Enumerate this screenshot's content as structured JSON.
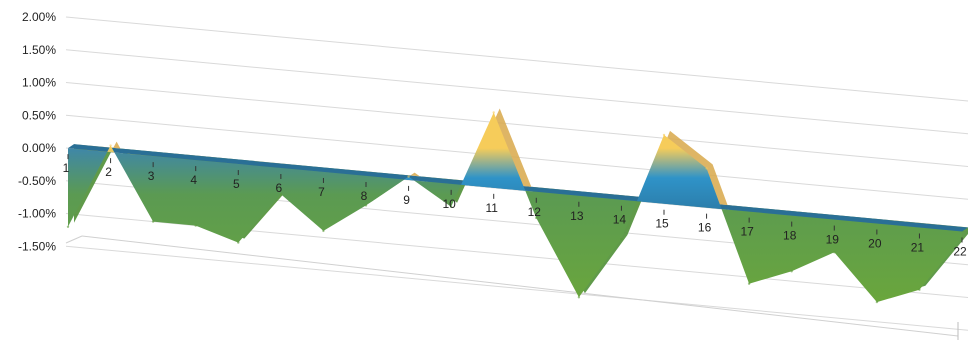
{
  "chart_data": {
    "type": "area",
    "style": "3d-ribbon",
    "title": "",
    "xlabel": "",
    "ylabel": "",
    "ylim": [
      -1.5,
      2.0
    ],
    "y_ticks": [
      "2.00%",
      "1.50%",
      "1.00%",
      "0.50%",
      "0.00%",
      "-0.50%",
      "-1.00%",
      "-1.50%"
    ],
    "y_tick_values": [
      2.0,
      1.5,
      1.0,
      0.5,
      0.0,
      -0.5,
      -1.0,
      -1.5
    ],
    "categories": [
      "1",
      "2",
      "3",
      "4",
      "5",
      "6",
      "7",
      "8",
      "9",
      "10",
      "11",
      "12",
      "13",
      "14",
      "15",
      "16",
      "17",
      "18",
      "19",
      "20",
      "21",
      "22"
    ],
    "series": [
      {
        "values": [
          -1.2,
          0.1,
          -1.0,
          -1.0,
          -1.2,
          -0.4,
          -0.9,
          -0.45,
          0.05,
          -0.35,
          1.15,
          -0.4,
          -1.55,
          -0.6,
          1.05,
          0.6,
          -1.1,
          -0.85,
          -0.5,
          -1.2,
          -0.95,
          -0.1
        ]
      }
    ],
    "grid": true,
    "legend": "none",
    "colors": {
      "positive_high": "#f6cc5a",
      "positive_mid": "#2f93c8",
      "baseline": "#2a6f96",
      "negative": "#6aa63c",
      "gridline": "#d9d9d9",
      "axis_text": "#222222"
    }
  }
}
